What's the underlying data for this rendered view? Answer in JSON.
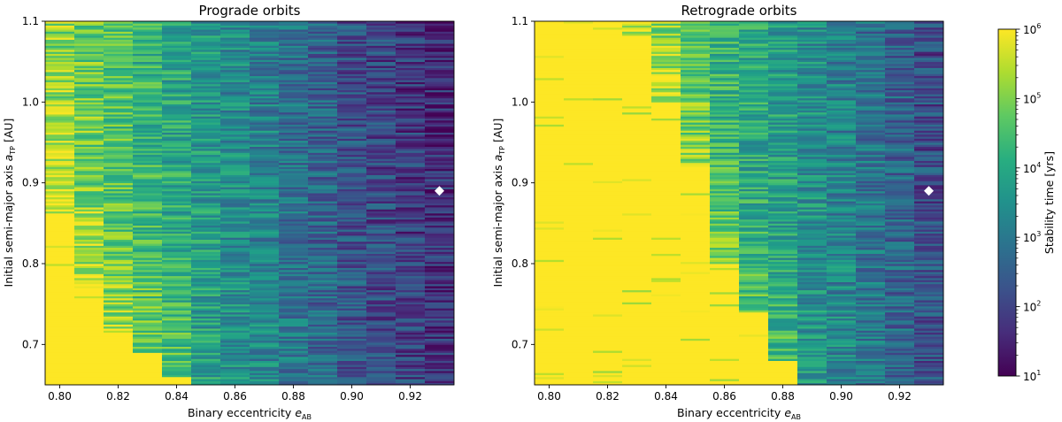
{
  "chart_data": [
    {
      "type": "heatmap",
      "title": "Prograde orbits",
      "xlabel": "Binary eccentricity",
      "xlabel_symbol": "e",
      "xlabel_sub": "AB",
      "ylabel": "Initial semi-major axis",
      "ylabel_symbol": "a",
      "ylabel_sub": "TP",
      "ylabel_unit": "[AU]",
      "xlim": [
        0.795,
        0.935
      ],
      "ylim": [
        0.65,
        1.1
      ],
      "xticks": [
        0.8,
        0.82,
        0.84,
        0.86,
        0.88,
        0.9,
        0.92
      ],
      "xtick_labels": [
        "0.80",
        "0.82",
        "0.84",
        "0.86",
        "0.88",
        "0.90",
        "0.92"
      ],
      "yticks": [
        0.7,
        0.8,
        0.9,
        1.0,
        1.1
      ],
      "ytick_labels": [
        "0.7",
        "0.8",
        "0.9",
        "1.0",
        "1.1"
      ],
      "eccentricity_columns": [
        0.8,
        0.81,
        0.82,
        0.83,
        0.84,
        0.85,
        0.86,
        0.87,
        0.88,
        0.89,
        0.9,
        0.91,
        0.92,
        0.93
      ],
      "stable_to_a": [
        0.86,
        0.77,
        0.72,
        0.69,
        0.66,
        0.0,
        0.0,
        0.0,
        0.0,
        0.0,
        0.0,
        0.0,
        0.0,
        0.0
      ],
      "log10_stability_base": [
        5.3,
        5.0,
        4.7,
        4.4,
        4.1,
        3.8,
        3.5,
        3.3,
        3.0,
        2.7,
        2.4,
        2.2,
        2.0,
        1.8
      ],
      "marker": {
        "x": 0.93,
        "y": 0.89,
        "shape": "diamond",
        "color": "#ffffff"
      }
    },
    {
      "type": "heatmap",
      "title": "Retrograde orbits",
      "xlabel": "Binary eccentricity",
      "xlabel_symbol": "e",
      "xlabel_sub": "AB",
      "ylabel": "Initial semi-major axis",
      "ylabel_symbol": "a",
      "ylabel_sub": "TP",
      "ylabel_unit": "[AU]",
      "xlim": [
        0.795,
        0.935
      ],
      "ylim": [
        0.65,
        1.1
      ],
      "xticks": [
        0.8,
        0.82,
        0.84,
        0.86,
        0.88,
        0.9,
        0.92
      ],
      "xtick_labels": [
        "0.80",
        "0.82",
        "0.84",
        "0.86",
        "0.88",
        "0.90",
        "0.92"
      ],
      "yticks": [
        0.7,
        0.8,
        0.9,
        1.0,
        1.1
      ],
      "ytick_labels": [
        "0.7",
        "0.8",
        "0.9",
        "1.0",
        "1.1"
      ],
      "eccentricity_columns": [
        0.8,
        0.81,
        0.82,
        0.83,
        0.84,
        0.85,
        0.86,
        0.87,
        0.88,
        0.89,
        0.9,
        0.91,
        0.92,
        0.93
      ],
      "stable_to_a": [
        1.1,
        1.1,
        1.1,
        1.08,
        1.0,
        0.92,
        0.8,
        0.74,
        0.68,
        0.0,
        0.0,
        0.0,
        0.0,
        0.0
      ],
      "log10_stability_base": [
        6.0,
        6.0,
        5.6,
        5.3,
        5.0,
        4.7,
        4.4,
        4.1,
        3.9,
        3.6,
        3.3,
        3.0,
        2.7,
        2.3
      ],
      "marker": {
        "x": 0.93,
        "y": 0.89,
        "shape": "diamond",
        "color": "#ffffff"
      }
    }
  ],
  "colorbar": {
    "label": "Stability time [yrs]",
    "scale": "log",
    "min_exp": 1,
    "max_exp": 6,
    "tick_base": "10",
    "tick_exponents": [
      "1",
      "2",
      "3",
      "4",
      "5",
      "6"
    ],
    "colormap": "viridis"
  }
}
